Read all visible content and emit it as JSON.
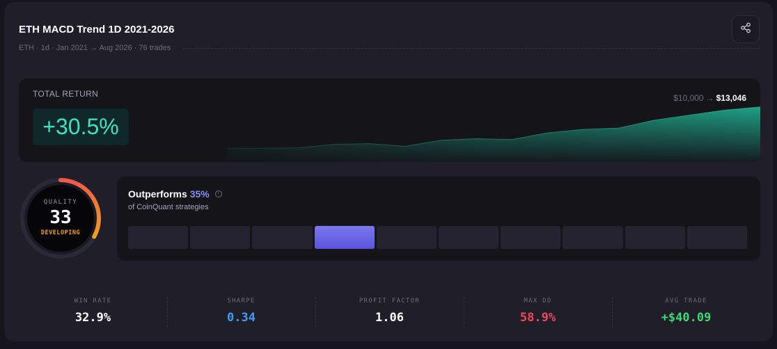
{
  "header": {
    "title": "ETH MACD Trend 1D 2021-2026",
    "subtitle": "ETH · 1d · Jan 2021 → Aug 2026 · 76 trades",
    "share_icon": "share-icon"
  },
  "total_return": {
    "label": "TOTAL RETURN",
    "value": "+30.5%",
    "start": "$10,000",
    "arrow": "→",
    "end": "$13,046",
    "equity_curve": [
      10000,
      10000,
      10020,
      10290,
      10340,
      10140,
      10580,
      10700,
      10640,
      11130,
      11390,
      11480,
      12060,
      12440,
      12810,
      13046
    ],
    "accent_color": "#3ee2c0"
  },
  "quality": {
    "label": "QUALITY",
    "score": "33",
    "status": "DEVELOPING",
    "fraction": 0.33,
    "status_color": "#f0a020"
  },
  "outperform": {
    "title": "Outperforms",
    "percent": "35%",
    "info_icon": "info-icon",
    "info_glyph": "i",
    "subtitle": "of CoinQuant strategies",
    "bins": 10,
    "active_bin": 3,
    "accent_color": "#7b78ef"
  },
  "stats": [
    {
      "label": "WIN RATE",
      "value": "32.9%",
      "color": "#ffffff"
    },
    {
      "label": "SHARPE",
      "value": "0.34",
      "color": "#3f9df0"
    },
    {
      "label": "PROFIT FACTOR",
      "value": "1.06",
      "color": "#ffffff"
    },
    {
      "label": "MAX DD",
      "value": "58.9%",
      "color": "#f0485a"
    },
    {
      "label": "AVG TRADE",
      "value": "+$40.09",
      "color": "#3ed872"
    }
  ]
}
